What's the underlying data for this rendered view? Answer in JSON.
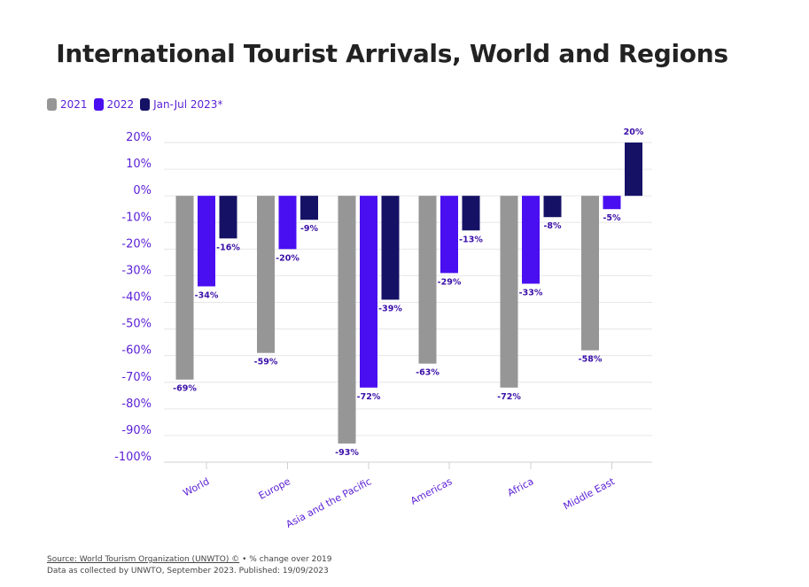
{
  "title": "International Tourist Arrivals, World and Regions",
  "legend": [
    {
      "label": "2021",
      "color": "#969696"
    },
    {
      "label": "2022",
      "color": "#4a0ff0"
    },
    {
      "label": "Jan-Jul 2023*",
      "color": "#151266"
    }
  ],
  "footer": {
    "source": "Source: World Tourism Organization (UNWTO) ©",
    "note": " • % change over 2019",
    "collected": "Data as collected by UNWTO, September 2023. Published: 19/09/2023"
  },
  "colors": {
    "tick_text": "#5a1fd6",
    "label_text": "#3a0fa8",
    "grid": "#e6e6e6"
  },
  "chart_data": {
    "type": "bar",
    "title": "International Tourist Arrivals, World and Regions",
    "categories": [
      "World",
      "Europe",
      "Asia and the Pacific",
      "Americas",
      "Africa",
      "Middle East"
    ],
    "series": [
      {
        "name": "2021",
        "values": [
          -69,
          -59,
          -93,
          -63,
          -72,
          -58
        ]
      },
      {
        "name": "2022",
        "values": [
          -34,
          -20,
          -72,
          -29,
          -33,
          -5
        ]
      },
      {
        "name": "Jan-Jul 2023*",
        "values": [
          -16,
          -9,
          -39,
          -13,
          -8,
          20
        ]
      }
    ],
    "ylim": [
      -100,
      20
    ],
    "yticks": [
      "20%",
      "10%",
      "0%",
      "-10%",
      "-20%",
      "-30%",
      "-40%",
      "-50%",
      "-60%",
      "-70%",
      "-80%",
      "-90%",
      "-100%"
    ],
    "value_suffix": "%",
    "grid": true,
    "legend_position": "top-left"
  }
}
